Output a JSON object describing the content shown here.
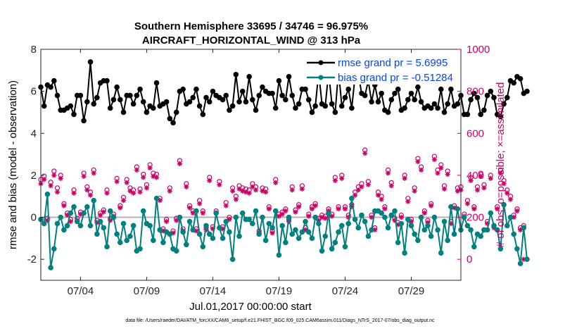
{
  "chart_data": {
    "type": "line",
    "title_line1": "Southern Hemisphere 33695 / 34746 = 96.975%",
    "title_line2": "AIRCRAFT_HORIZONTAL_WIND @ 313 hPa",
    "xlabel": "Jul.01,2017 00:00:00 start",
    "ylabel_left": "rmse and bias (model - observation)",
    "ylabel_right": "# of obs: o=possible; ×=assimilated",
    "footnote": "data file: /Users/raeder/DAI/ATM_forcXX/CAM6_setup/f.e21.FHIST_BGC.f09_025.CAM6assim.011/Diags_NTrS_2017-07/obs_diag_output.nc",
    "xlim": [
      1.0,
      32.75
    ],
    "ylim_left": [
      -3,
      8
    ],
    "ylim_right": [
      -100,
      1000
    ],
    "x_tick_values": [
      4,
      9,
      14,
      19,
      24,
      29
    ],
    "x_tick_labels": [
      "07/04",
      "07/09",
      "07/14",
      "07/19",
      "07/24",
      "07/29"
    ],
    "y_left_ticks": [
      -2,
      0,
      2,
      4,
      6,
      8
    ],
    "y_right_ticks": [
      0,
      200,
      400,
      600,
      800,
      1000
    ],
    "zero_line": 0,
    "colors": {
      "rmse": "#000000",
      "bias": "#00807f",
      "obs": "#cc0066",
      "legend_text": "#0047ff",
      "zero_line": "#b3b3b3"
    },
    "series": [
      {
        "name": "rmse grand pr = 5.6995",
        "axis": "left",
        "x0": 1.0,
        "dx": 0.25,
        "values": [
          6.2,
          5.3,
          6.3,
          6.2,
          6.5,
          5.8,
          5.1,
          5.1,
          5.2,
          5.3,
          4.9,
          5.8,
          5.8,
          4.6,
          5.5,
          7.4,
          5.4,
          5.7,
          6.4,
          6.5,
          6.5,
          5.2,
          5.6,
          6.2,
          5.6,
          5.0,
          5.8,
          5.8,
          5.4,
          5.8,
          6.1,
          5.5,
          5.0,
          5.3,
          5.2,
          6.4,
          5.3,
          5.4,
          5.5,
          4.7,
          4.5,
          5.0,
          6.0,
          6.1,
          5.4,
          5.5,
          5.7,
          6.1,
          5.3,
          4.9,
          5.7,
          5.5,
          6.0,
          5.8,
          5.7,
          5.6,
          5.8,
          5.1,
          5.3,
          6.8,
          5.5,
          6.0,
          5.5,
          6.7,
          5.6,
          5.1,
          5.8,
          6.2,
          6.0,
          5.9,
          5.9,
          5.2,
          6.5,
          5.8,
          5.6,
          6.7,
          5.8,
          5.2,
          5.4,
          6.1,
          6.1,
          5.6,
          5.0,
          5.3,
          6.9,
          5.4,
          5.3,
          6.9,
          5.4,
          5.0,
          7.0,
          5.3,
          5.7,
          6.1,
          5.2,
          6.7,
          6.8,
          5.9,
          5.8,
          6.5,
          5.5,
          6.3,
          5.5,
          5.9,
          5.1,
          5.0,
          5.6,
          5.9,
          6.1,
          5.1,
          5.2,
          5.6,
          5.9,
          5.6,
          6.2,
          5.5,
          5.2,
          5.3,
          5.2,
          5.4,
          5.2,
          6.1,
          5.0,
          5.4,
          6.1,
          5.3,
          5.4,
          5.8,
          4.9,
          4.9,
          5.6,
          5.9,
          5.7,
          4.9,
          5.1,
          5.8,
          6.0,
          5.7,
          4.9,
          4.8,
          5.4,
          5.7,
          6.5,
          6.4,
          6.7,
          6.6,
          5.9,
          6.0
        ]
      },
      {
        "name": "bias grand pr = -0.51284",
        "axis": "left",
        "x0": 1.0,
        "dx": 0.25,
        "values": [
          -0.1,
          -0.3,
          1.1,
          -2.4,
          -1.5,
          -0.3,
          0.0,
          -0.6,
          -0.4,
          0.2,
          0.5,
          -0.2,
          -0.4,
          0.2,
          0.5,
          -0.4,
          0.8,
          -0.8,
          -0.2,
          -0.5,
          -1.4,
          0.3,
          0.0,
          -0.8,
          -1.2,
          -0.3,
          -1.1,
          -0.9,
          -0.4,
          -1.6,
          -1.5,
          0.3,
          -0.3,
          -0.4,
          -1.1,
          0.9,
          -0.6,
          -1.2,
          -0.7,
          -0.8,
          -1.5,
          -1.6,
          0.0,
          -0.7,
          -1.3,
          -0.2,
          -0.6,
          0.3,
          -0.8,
          -1.4,
          -0.4,
          -0.8,
          -1.0,
          0.2,
          -0.5,
          -1.0,
          -0.2,
          -0.7,
          -2.0,
          0.0,
          -0.9,
          0.2,
          -0.1,
          -0.1,
          -0.3,
          0.3,
          -0.8,
          0.0,
          -1.1,
          -0.3,
          -0.5,
          0.3,
          -1.8,
          -0.4,
          -1.2,
          0.0,
          -0.8,
          -0.6,
          -1.0,
          -0.7,
          -0.2,
          -0.7,
          -1.0,
          0.0,
          -0.3,
          -1.6,
          -0.9,
          0.2,
          -1.5,
          -1.2,
          -0.7,
          -0.4,
          -1.4,
          -0.3,
          0.9,
          -0.1,
          -0.5,
          0.1,
          -0.2,
          -0.9,
          -0.6,
          0.3,
          0.3,
          0.2,
          0.0,
          -0.5,
          0.1,
          0.3,
          -1.2,
          -0.3,
          -1.7,
          -0.1,
          -0.4,
          -0.8,
          -1.1,
          0.0,
          -0.6,
          -0.4,
          -0.9,
          0.0,
          -0.6,
          -1.7,
          -0.2,
          -1.1,
          0.5,
          -0.8,
          0.4,
          -0.6,
          0.0,
          -0.4,
          -0.6,
          -1.4,
          -0.8,
          -0.9,
          -0.6,
          -0.6,
          0.2,
          -0.4,
          -0.6,
          -1.5,
          0.6,
          -0.4,
          0.0,
          -0.8,
          -1.5,
          -2.2,
          -0.5,
          -2.0
        ]
      },
      {
        "name": "# of obs possible",
        "axis": "right",
        "marker": "circle",
        "x0": 1.0,
        "dx": 0.25,
        "values": [
          380,
          396,
          195,
          367,
          420,
          340,
          400,
          265,
          220,
          190,
          330,
          195,
          225,
          410,
          345,
          320,
          425,
          185,
          220,
          235,
          330,
          195,
          215,
          385,
          255,
          295,
          380,
          340,
          330,
          440,
          335,
          405,
          355,
          450,
          410,
          405,
          290,
          145,
          190,
          340,
          135,
          195,
          470,
          145,
          360,
          255,
          230,
          145,
          280,
          230,
          150,
          390,
          155,
          230,
          370,
          155,
          270,
          200,
          340,
          300,
          350,
          340,
          335,
          330,
          360,
          345,
          135,
          340,
          335,
          250,
          135,
          380,
          215,
          225,
          240,
          190,
          345,
          235,
          260,
          350,
          150,
          215,
          250,
          265,
          195,
          210,
          205,
          240,
          215,
          390,
          250,
          400,
          250,
          210,
          260,
          320,
          345,
          360,
          520,
          370,
          210,
          150,
          320,
          300,
          250,
          425,
          365,
          195,
          175,
          210,
          400,
          290,
          190,
          340,
          480,
          440,
          230,
          185,
          265,
          490,
          425,
          450,
          350,
          420,
          180,
          255,
          340,
          345,
          215,
          280,
          390,
          250,
          345,
          410,
          355,
          180,
          400,
          160,
          250,
          425,
          375,
          330,
          300,
          210,
          240,
          150,
          160
        ]
      },
      {
        "name": "# of obs assimilated",
        "axis": "right",
        "marker": "asterisk",
        "x0": 1.0,
        "dx": 0.25,
        "values": [
          360,
          380,
          185,
          350,
          400,
          320,
          385,
          255,
          210,
          180,
          315,
          185,
          215,
          395,
          330,
          305,
          410,
          175,
          210,
          225,
          315,
          185,
          205,
          370,
          245,
          280,
          365,
          325,
          315,
          425,
          320,
          390,
          340,
          435,
          395,
          390,
          280,
          135,
          180,
          325,
          125,
          185,
          455,
          135,
          345,
          245,
          220,
          135,
          265,
          220,
          140,
          375,
          145,
          220,
          355,
          145,
          255,
          190,
          325,
          285,
          335,
          325,
          320,
          315,
          345,
          330,
          125,
          325,
          320,
          240,
          125,
          365,
          205,
          215,
          230,
          180,
          330,
          225,
          250,
          335,
          140,
          205,
          240,
          255,
          185,
          200,
          195,
          230,
          205,
          375,
          240,
          385,
          240,
          200,
          250,
          305,
          330,
          345,
          505,
          355,
          200,
          140,
          305,
          285,
          240,
          410,
          350,
          185,
          165,
          200,
          385,
          275,
          180,
          325,
          465,
          425,
          220,
          175,
          255,
          475,
          410,
          435,
          335,
          405,
          170,
          245,
          325,
          330,
          205,
          265,
          375,
          240,
          330,
          395,
          340,
          170,
          385,
          150,
          240,
          410,
          360,
          315,
          285,
          200,
          230,
          140,
          0
        ]
      }
    ]
  }
}
